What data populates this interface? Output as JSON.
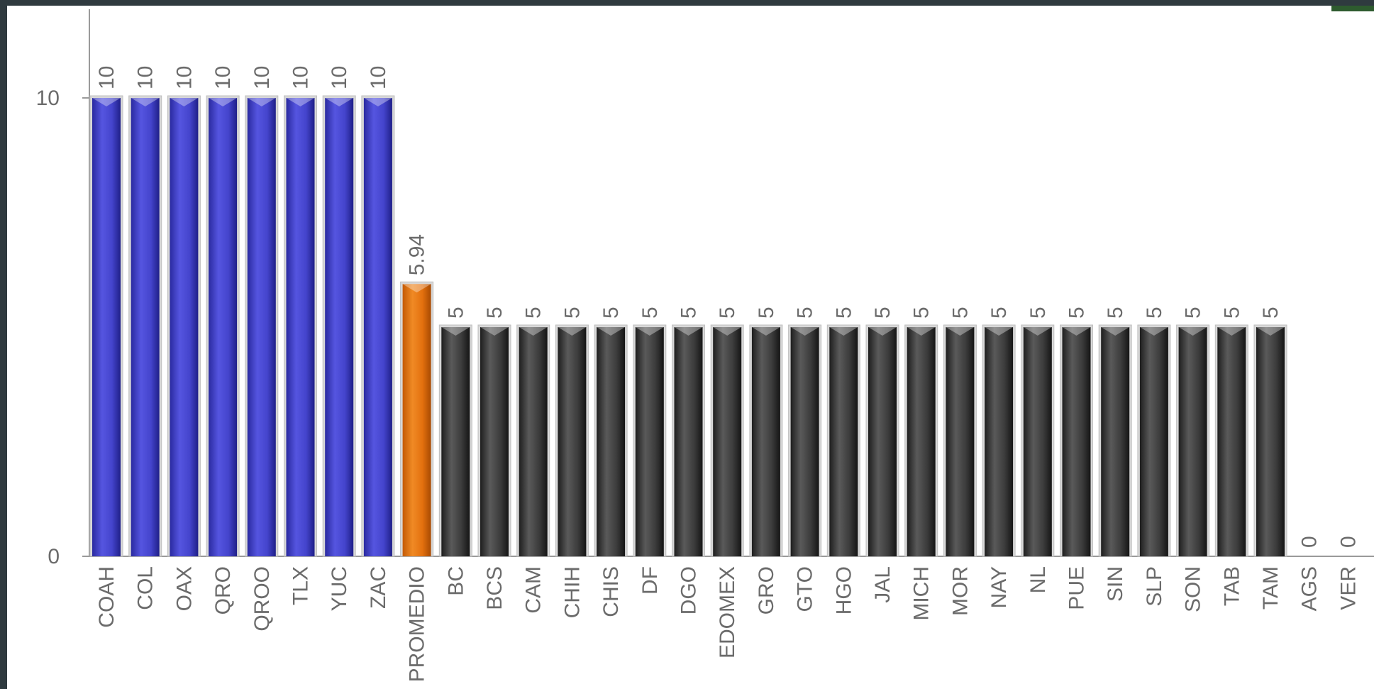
{
  "colors": {
    "blue": "#3f3fc8",
    "orange": "#e3700e",
    "dark": "#3a3a3a",
    "axis": "#9a9a9a",
    "frame_bg": "#2f3a3f"
  },
  "chart_data": {
    "type": "bar",
    "title": "",
    "xlabel": "",
    "ylabel": "",
    "ylim": [
      0,
      12
    ],
    "yticks": [
      0,
      10
    ],
    "grid": false,
    "legend": "none",
    "categories": [
      "COAH",
      "COL",
      "OAX",
      "QRO",
      "QROO",
      "TLX",
      "YUC",
      "ZAC",
      "PROMEDIO",
      "BC",
      "BCS",
      "CAM",
      "CHIH",
      "CHIS",
      "DF",
      "DGO",
      "EDOMEX",
      "GRO",
      "GTO",
      "HGO",
      "JAL",
      "MICH",
      "MOR",
      "NAY",
      "NL",
      "PUE",
      "SIN",
      "SLP",
      "SON",
      "TAB",
      "TAM",
      "AGS",
      "VER"
    ],
    "values": [
      10,
      10,
      10,
      10,
      10,
      10,
      10,
      10,
      5.94,
      5,
      5,
      5,
      5,
      5,
      5,
      5,
      5,
      5,
      5,
      5,
      5,
      5,
      5,
      5,
      5,
      5,
      5,
      5,
      5,
      5,
      5,
      0,
      0
    ],
    "value_labels": [
      "10",
      "10",
      "10",
      "10",
      "10",
      "10",
      "10",
      "10",
      "5.94",
      "5",
      "5",
      "5",
      "5",
      "5",
      "5",
      "5",
      "5",
      "5",
      "5",
      "5",
      "5",
      "5",
      "5",
      "5",
      "5",
      "5",
      "5",
      "5",
      "5",
      "5",
      "5",
      "0",
      "0"
    ],
    "bar_colors": [
      "blue",
      "blue",
      "blue",
      "blue",
      "blue",
      "blue",
      "blue",
      "blue",
      "orange",
      "dark",
      "dark",
      "dark",
      "dark",
      "dark",
      "dark",
      "dark",
      "dark",
      "dark",
      "dark",
      "dark",
      "dark",
      "dark",
      "dark",
      "dark",
      "dark",
      "dark",
      "dark",
      "dark",
      "dark",
      "dark",
      "dark",
      "dark",
      "dark"
    ]
  }
}
